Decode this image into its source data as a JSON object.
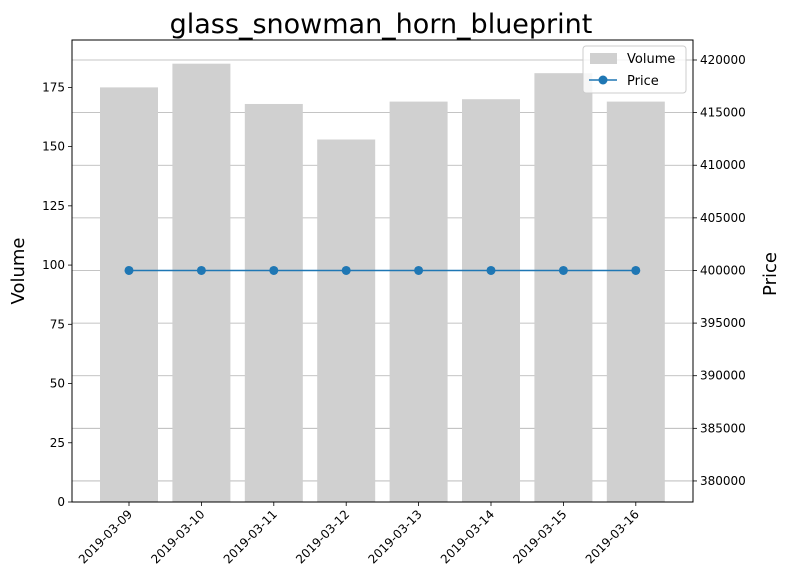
{
  "chart_data": {
    "type": "bar+line",
    "title": "glass_snowman_horn_blueprint",
    "categories": [
      "2019-03-09",
      "2019-03-10",
      "2019-03-11",
      "2019-03-12",
      "2019-03-13",
      "2019-03-14",
      "2019-03-15",
      "2019-03-16"
    ],
    "series": [
      {
        "name": "Volume",
        "type": "bar",
        "axis": "left",
        "color": "#d0d0d0",
        "values": [
          175,
          185,
          168,
          153,
          169,
          170,
          181,
          169
        ]
      },
      {
        "name": "Price",
        "type": "line",
        "axis": "right",
        "color": "#1f77b4",
        "marker": "circle",
        "values": [
          400000,
          400000,
          400000,
          400000,
          400000,
          400000,
          400000,
          400000
        ]
      }
    ],
    "ylabel_left": "Volume",
    "ylabel_right": "Price",
    "xlabel": "",
    "ylim_left": [
      0,
      195
    ],
    "ylim_right": [
      378000,
      421900
    ],
    "yticks_left": [
      "0",
      "25",
      "50",
      "75",
      "100",
      "125",
      "150",
      "175"
    ],
    "yticks_right": [
      "380000",
      "385000",
      "390000",
      "395000",
      "400000",
      "405000",
      "410000",
      "415000",
      "420000"
    ],
    "grid": "horizontal (right axis)",
    "legend_position": "top-right",
    "xtick_rotation": 45
  }
}
